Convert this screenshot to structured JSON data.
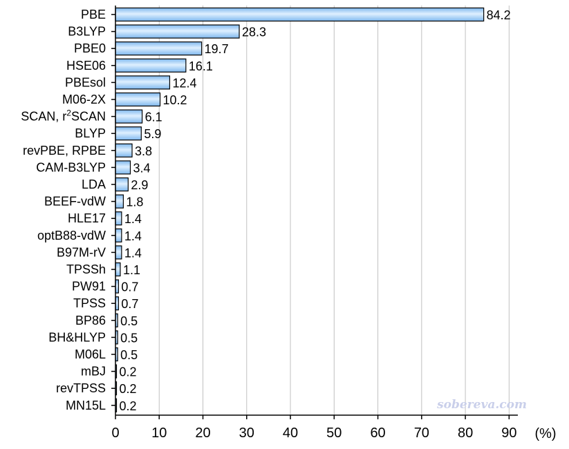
{
  "chart_data": {
    "type": "bar",
    "orientation": "horizontal",
    "categories": [
      "PBE",
      "B3LYP",
      "PBE0",
      "HSE06",
      "PBEsol",
      "M06-2X",
      "SCAN, r2SCAN",
      "BLYP",
      "revPBE, RPBE",
      "CAM-B3LYP",
      "LDA",
      "BEEF-vdW",
      "HLE17",
      "optB88-vdW",
      "B97M-rV",
      "TPSSh",
      "PW91",
      "TPSS",
      "BP86",
      "BH&HLYP",
      "M06L",
      "mBJ",
      "revTPSS",
      "MN15L"
    ],
    "values": [
      84.2,
      28.3,
      19.7,
      16.1,
      12.4,
      10.2,
      6.1,
      5.9,
      3.8,
      3.4,
      2.9,
      1.8,
      1.4,
      1.4,
      1.4,
      1.1,
      0.7,
      0.7,
      0.5,
      0.5,
      0.5,
      0.2,
      0.2,
      0.2
    ],
    "value_labels": [
      "84.2",
      "28.3",
      "19.7",
      "16.1",
      "12.4",
      "10.2",
      "6.1",
      "5.9",
      "3.8",
      "3.4",
      "2.9",
      "1.8",
      "1.4",
      "1.4",
      "1.4",
      "1.1",
      "0.7",
      "0.7",
      "0.5",
      "0.5",
      "0.5",
      "0.2",
      "0.2",
      "0.2"
    ],
    "xticks": [
      "0",
      "10",
      "20",
      "30",
      "40",
      "50",
      "60",
      "70",
      "80",
      "90"
    ],
    "xlim": [
      0,
      92
    ],
    "xunit": "(%)",
    "grid": "vertical",
    "bar_color": "#7fb8ee",
    "bar_highlight": "#dff0ff",
    "bar_edge": "#000000",
    "grid_color": "#c0c0c0",
    "watermark": "sobereva.com"
  }
}
